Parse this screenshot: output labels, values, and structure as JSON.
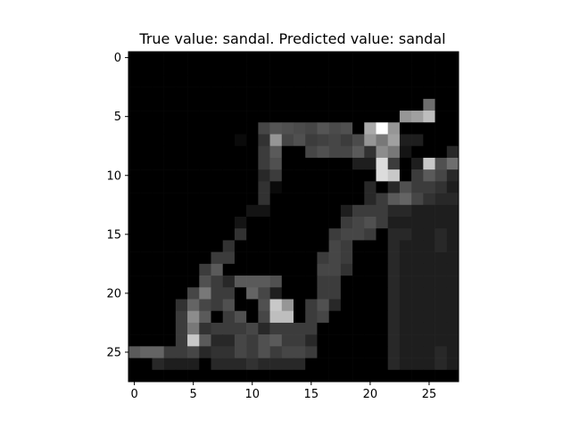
{
  "chart_data": {
    "type": "heatmap",
    "title": "True value: sandal. Predicted value: sandal",
    "colormap": "gray",
    "value_range": [
      0,
      255
    ],
    "x_ticks": [
      0,
      5,
      10,
      15,
      20,
      25
    ],
    "y_ticks": [
      0,
      5,
      10,
      15,
      20,
      25
    ],
    "x_range": [
      -0.5,
      27.5
    ],
    "y_range": [
      27.5,
      -0.5
    ],
    "grid": false,
    "rows": 28,
    "cols": 28,
    "pixels": [
      [
        0,
        0,
        0,
        0,
        0,
        0,
        0,
        0,
        0,
        0,
        0,
        0,
        0,
        0,
        0,
        0,
        0,
        0,
        0,
        0,
        0,
        0,
        0,
        0,
        0,
        0,
        0,
        0
      ],
      [
        0,
        0,
        0,
        0,
        0,
        0,
        0,
        0,
        0,
        0,
        0,
        0,
        0,
        0,
        0,
        0,
        0,
        0,
        0,
        0,
        0,
        0,
        0,
        0,
        0,
        0,
        0,
        0
      ],
      [
        0,
        0,
        0,
        0,
        0,
        0,
        0,
        0,
        0,
        0,
        0,
        0,
        0,
        0,
        0,
        0,
        0,
        0,
        0,
        0,
        0,
        0,
        0,
        0,
        0,
        0,
        0,
        0
      ],
      [
        0,
        0,
        0,
        0,
        0,
        0,
        0,
        0,
        0,
        0,
        0,
        0,
        0,
        0,
        0,
        0,
        0,
        0,
        0,
        0,
        0,
        0,
        0,
        0,
        0,
        0,
        0,
        0
      ],
      [
        0,
        0,
        0,
        0,
        0,
        0,
        0,
        0,
        0,
        0,
        0,
        0,
        0,
        0,
        0,
        0,
        0,
        0,
        0,
        0,
        0,
        0,
        0,
        0,
        0,
        110,
        0,
        0
      ],
      [
        0,
        0,
        0,
        0,
        0,
        0,
        0,
        0,
        0,
        0,
        0,
        0,
        0,
        0,
        0,
        0,
        0,
        0,
        0,
        0,
        0,
        0,
        0,
        150,
        160,
        190,
        0,
        0
      ],
      [
        0,
        0,
        0,
        0,
        0,
        0,
        0,
        0,
        0,
        0,
        0,
        70,
        85,
        80,
        75,
        70,
        85,
        75,
        80,
        0,
        170,
        255,
        150,
        0,
        0,
        0,
        0,
        0
      ],
      [
        0,
        0,
        0,
        0,
        0,
        0,
        0,
        0,
        0,
        10,
        0,
        50,
        150,
        70,
        80,
        60,
        65,
        70,
        60,
        75,
        150,
        120,
        160,
        30,
        30,
        0,
        0,
        0
      ],
      [
        0,
        0,
        0,
        0,
        0,
        0,
        0,
        0,
        0,
        0,
        0,
        60,
        90,
        0,
        0,
        70,
        80,
        70,
        70,
        90,
        50,
        140,
        120,
        20,
        0,
        0,
        0,
        40
      ],
      [
        0,
        0,
        0,
        0,
        0,
        0,
        0,
        0,
        0,
        0,
        0,
        60,
        80,
        0,
        0,
        0,
        0,
        0,
        0,
        30,
        30,
        220,
        60,
        0,
        30,
        200,
        80,
        110
      ],
      [
        0,
        0,
        0,
        0,
        0,
        0,
        0,
        0,
        0,
        0,
        0,
        40,
        60,
        0,
        0,
        0,
        0,
        0,
        0,
        0,
        0,
        220,
        200,
        0,
        60,
        90,
        70,
        40
      ],
      [
        0,
        0,
        0,
        0,
        0,
        0,
        0,
        0,
        0,
        0,
        0,
        50,
        10,
        0,
        0,
        0,
        0,
        0,
        0,
        0,
        40,
        0,
        40,
        80,
        60,
        60,
        50,
        30
      ],
      [
        0,
        0,
        0,
        0,
        0,
        0,
        0,
        0,
        0,
        0,
        0,
        50,
        0,
        0,
        0,
        0,
        0,
        0,
        0,
        0,
        40,
        60,
        90,
        100,
        70,
        50,
        40,
        40
      ],
      [
        0,
        0,
        0,
        0,
        0,
        0,
        0,
        0,
        0,
        0,
        20,
        20,
        0,
        0,
        0,
        0,
        0,
        0,
        30,
        60,
        60,
        60,
        40,
        40,
        30,
        30,
        30,
        30
      ],
      [
        0,
        0,
        0,
        0,
        0,
        0,
        0,
        0,
        0,
        20,
        0,
        0,
        0,
        0,
        0,
        0,
        0,
        0,
        60,
        70,
        80,
        60,
        30,
        30,
        30,
        30,
        30,
        30
      ],
      [
        0,
        0,
        0,
        0,
        0,
        0,
        0,
        0,
        0,
        50,
        0,
        0,
        0,
        0,
        0,
        0,
        0,
        60,
        70,
        70,
        60,
        0,
        40,
        40,
        30,
        30,
        40,
        30
      ],
      [
        0,
        0,
        0,
        0,
        0,
        0,
        0,
        0,
        50,
        0,
        0,
        0,
        0,
        0,
        0,
        0,
        0,
        70,
        60,
        0,
        0,
        0,
        40,
        30,
        30,
        30,
        40,
        30
      ],
      [
        0,
        0,
        0,
        0,
        0,
        0,
        0,
        60,
        60,
        0,
        0,
        0,
        0,
        0,
        0,
        0,
        60,
        70,
        60,
        0,
        0,
        0,
        40,
        30,
        30,
        30,
        30,
        30
      ],
      [
        0,
        0,
        0,
        0,
        0,
        0,
        60,
        90,
        0,
        0,
        0,
        0,
        0,
        0,
        0,
        0,
        70,
        70,
        50,
        0,
        0,
        0,
        40,
        30,
        30,
        30,
        30,
        30
      ],
      [
        0,
        0,
        0,
        0,
        0,
        0,
        80,
        60,
        40,
        90,
        90,
        90,
        80,
        0,
        0,
        0,
        60,
        60,
        0,
        0,
        0,
        0,
        40,
        30,
        30,
        30,
        30,
        30
      ],
      [
        0,
        0,
        0,
        0,
        0,
        70,
        120,
        60,
        60,
        0,
        100,
        70,
        30,
        0,
        0,
        0,
        60,
        60,
        0,
        0,
        0,
        0,
        40,
        30,
        30,
        30,
        30,
        30
      ],
      [
        0,
        0,
        0,
        0,
        50,
        100,
        70,
        60,
        80,
        0,
        0,
        80,
        200,
        150,
        0,
        60,
        80,
        40,
        0,
        0,
        0,
        0,
        40,
        30,
        30,
        30,
        30,
        30
      ],
      [
        0,
        0,
        0,
        0,
        60,
        140,
        90,
        0,
        60,
        80,
        0,
        70,
        190,
        190,
        0,
        60,
        70,
        0,
        0,
        0,
        0,
        0,
        40,
        30,
        30,
        30,
        30,
        30
      ],
      [
        0,
        0,
        0,
        0,
        60,
        120,
        50,
        60,
        60,
        60,
        70,
        40,
        60,
        60,
        60,
        60,
        0,
        0,
        0,
        0,
        0,
        0,
        40,
        30,
        30,
        30,
        30,
        30
      ],
      [
        0,
        0,
        0,
        0,
        60,
        200,
        90,
        40,
        40,
        70,
        60,
        80,
        90,
        60,
        60,
        40,
        0,
        0,
        0,
        0,
        0,
        0,
        40,
        30,
        30,
        30,
        30,
        30
      ],
      [
        90,
        100,
        100,
        60,
        60,
        70,
        40,
        50,
        50,
        70,
        60,
        80,
        60,
        70,
        70,
        60,
        0,
        0,
        0,
        0,
        0,
        0,
        40,
        30,
        30,
        30,
        40,
        30
      ],
      [
        0,
        0,
        40,
        30,
        30,
        30,
        0,
        40,
        40,
        40,
        50,
        40,
        40,
        40,
        40,
        0,
        0,
        0,
        0,
        0,
        0,
        0,
        40,
        30,
        30,
        30,
        40,
        30
      ],
      [
        0,
        0,
        0,
        0,
        0,
        0,
        0,
        0,
        0,
        0,
        0,
        0,
        0,
        0,
        0,
        0,
        0,
        0,
        0,
        0,
        0,
        0,
        0,
        0,
        0,
        0,
        0,
        0
      ]
    ]
  }
}
